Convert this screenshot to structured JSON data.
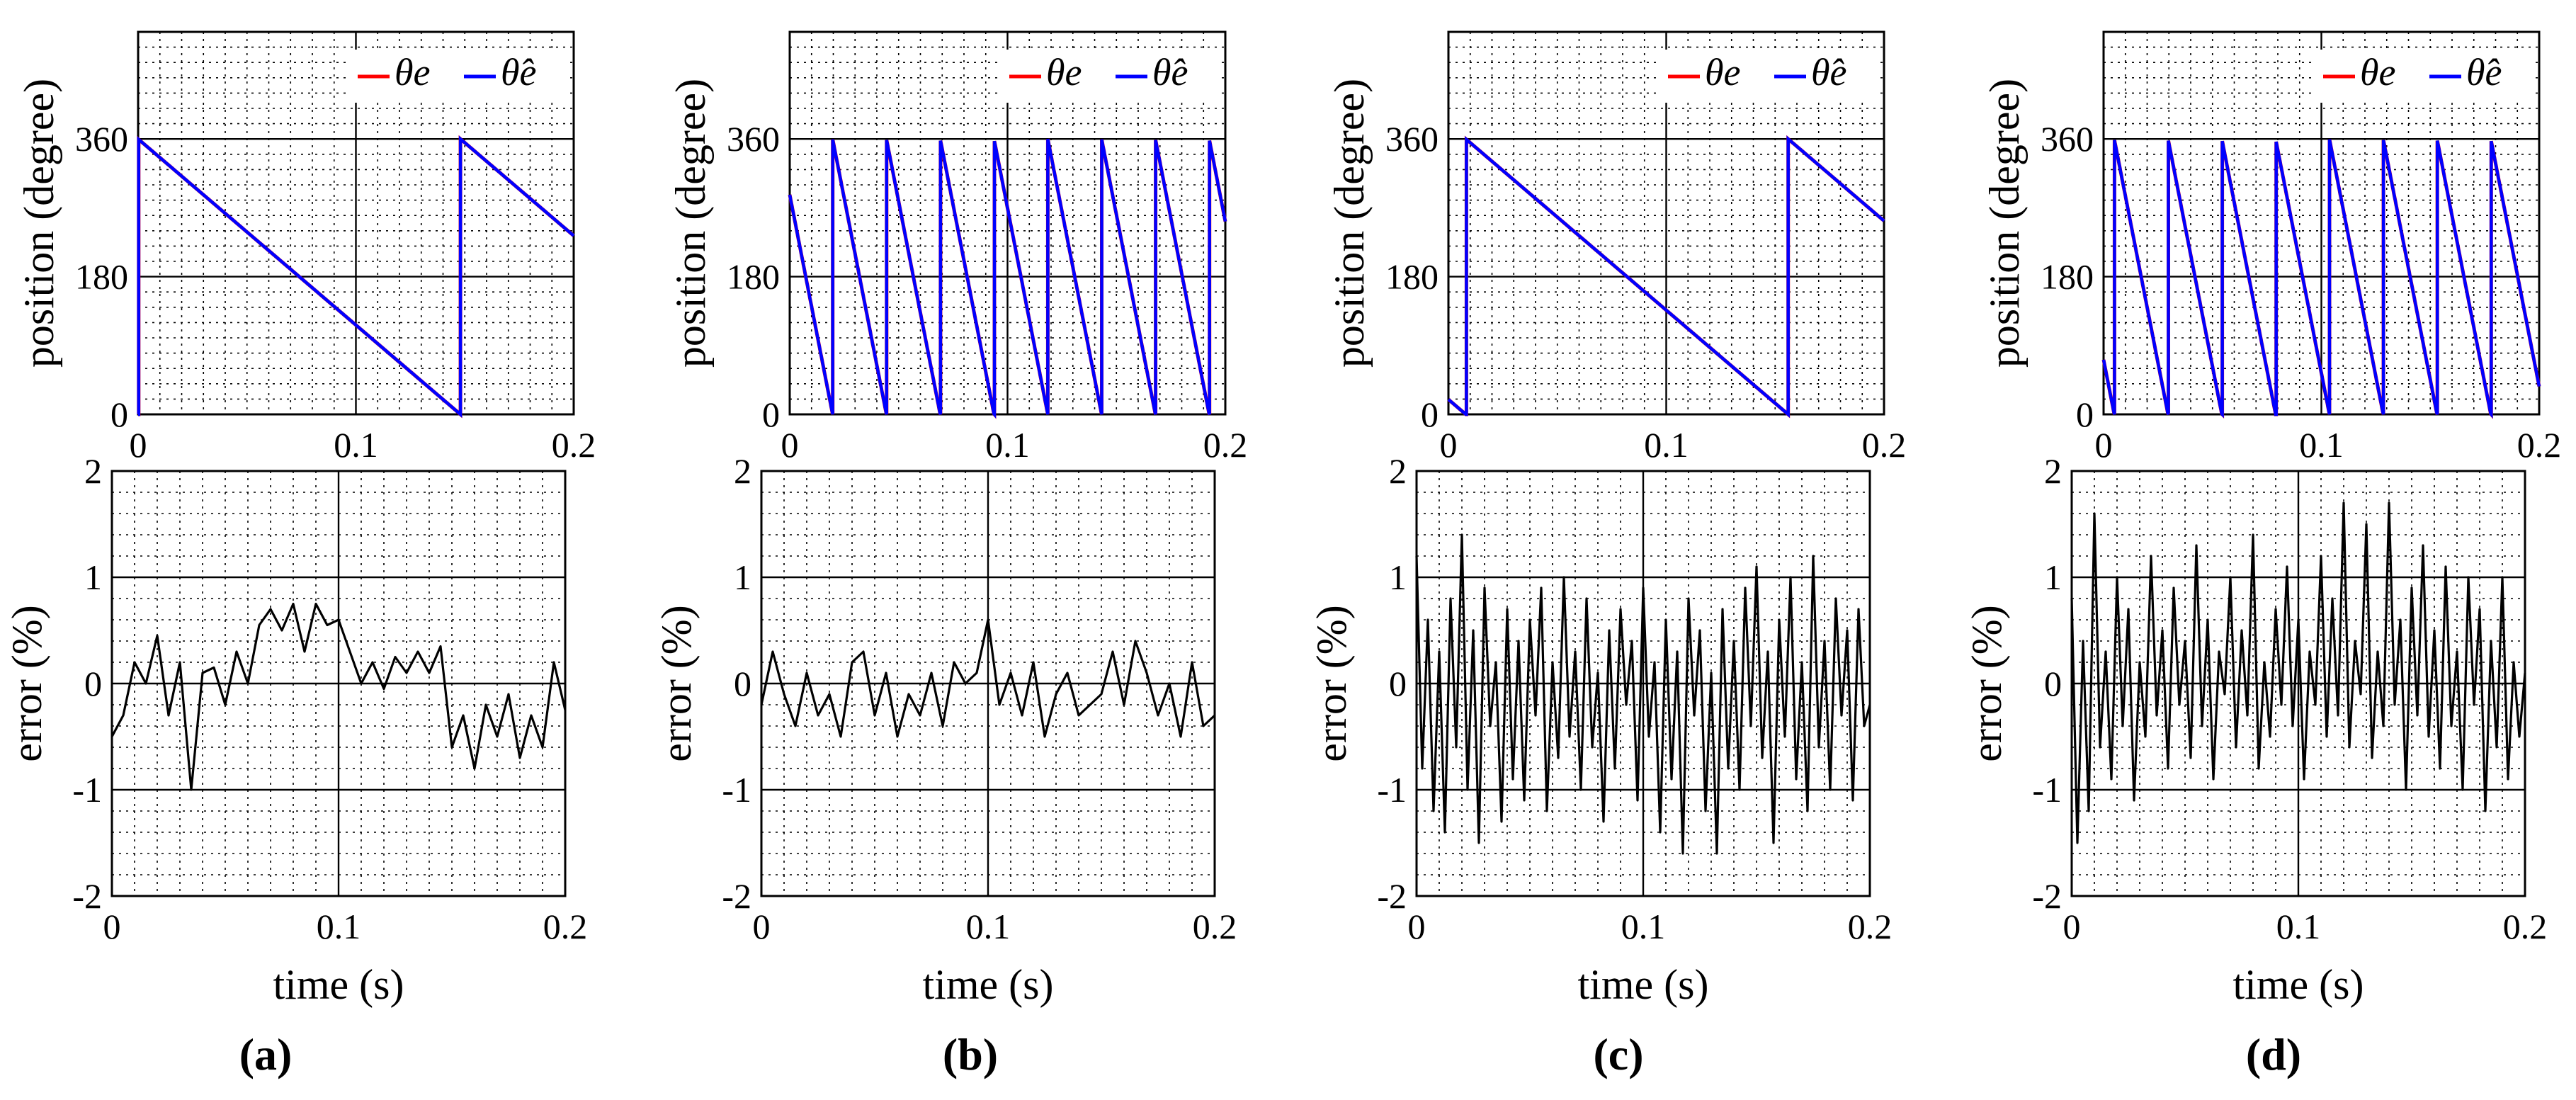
{
  "figure": {
    "captions": [
      "(a)",
      "(b)",
      "(c)",
      "(d)"
    ],
    "xlabel": "time  (s)",
    "colors": {
      "actual": "#ff0000",
      "estimated": "#0000ff",
      "error": "#000000",
      "grid_major": "#000000",
      "grid_minor": "#000000"
    }
  },
  "chart_data": [
    {
      "id": "a-position",
      "panel": "a",
      "type": "line",
      "title": "",
      "xlabel": "",
      "ylabel": "position (degree)",
      "xlim": [
        0,
        0.2
      ],
      "ylim": [
        0,
        500
      ],
      "xticks": [
        0,
        0.1,
        0.2
      ],
      "xtick_labels": [
        "0",
        "0.1",
        "0.2"
      ],
      "yticks": [
        0,
        180,
        360
      ],
      "ytick_labels": [
        "0",
        "180",
        "360"
      ],
      "grid": true,
      "legend": [
        "θe",
        "θ̂e"
      ],
      "legend_position": "top-right",
      "period_s": 0.148,
      "zero_phase_s": 0.148,
      "series": [
        {
          "name": "θe",
          "color": "#ff0000"
        },
        {
          "name": "θ̂e",
          "color": "#0000ff"
        }
      ]
    },
    {
      "id": "b-position",
      "panel": "b",
      "type": "line",
      "title": "",
      "xlabel": "",
      "ylabel": "position (degree)",
      "xlim": [
        0,
        0.2
      ],
      "ylim": [
        0,
        500
      ],
      "xticks": [
        0,
        0.1,
        0.2
      ],
      "xtick_labels": [
        "0",
        "0.1",
        "0.2"
      ],
      "yticks": [
        0,
        180,
        360
      ],
      "ytick_labels": [
        "0",
        "180",
        "360"
      ],
      "grid": true,
      "legend": [
        "θe",
        "θ̂e"
      ],
      "legend_position": "top-right",
      "period_s": 0.0247,
      "zero_phase_s": 0.0197,
      "series": [
        {
          "name": "θe",
          "color": "#ff0000"
        },
        {
          "name": "θ̂e",
          "color": "#0000ff"
        }
      ]
    },
    {
      "id": "c-position",
      "panel": "c",
      "type": "line",
      "title": "",
      "xlabel": "",
      "ylabel": "position (degree)",
      "xlim": [
        0,
        0.2
      ],
      "ylim": [
        0,
        500
      ],
      "xticks": [
        0,
        0.1,
        0.2
      ],
      "xtick_labels": [
        "0",
        "0.1",
        "0.2"
      ],
      "yticks": [
        0,
        180,
        360
      ],
      "ytick_labels": [
        "0",
        "180",
        "360"
      ],
      "grid": true,
      "legend": [
        "θe",
        "θ̂e"
      ],
      "legend_position": "top-right",
      "period_s": 0.148,
      "zero_phase_s": 0.156,
      "series": [
        {
          "name": "θe",
          "color": "#ff0000"
        },
        {
          "name": "θ̂e",
          "color": "#0000ff"
        }
      ]
    },
    {
      "id": "d-position",
      "panel": "d",
      "type": "line",
      "title": "",
      "xlabel": "",
      "ylabel": "position (degree)",
      "xlim": [
        0,
        0.2
      ],
      "ylim": [
        0,
        500
      ],
      "xticks": [
        0,
        0.1,
        0.2
      ],
      "xtick_labels": [
        "0",
        "0.1",
        "0.2"
      ],
      "yticks": [
        0,
        180,
        360
      ],
      "ytick_labels": [
        "0",
        "180",
        "360"
      ],
      "grid": true,
      "legend": [
        "θe",
        "θ̂e"
      ],
      "legend_position": "top-right",
      "period_s": 0.0247,
      "zero_phase_s": 0.0049,
      "series": [
        {
          "name": "θe",
          "color": "#ff0000"
        },
        {
          "name": "θ̂e",
          "color": "#0000ff"
        }
      ]
    },
    {
      "id": "a-error",
      "panel": "a",
      "type": "line",
      "title": "",
      "xlabel": "time  (s)",
      "ylabel": "error (%)",
      "xlim": [
        0,
        0.2
      ],
      "ylim": [
        -2,
        2
      ],
      "xticks": [
        0,
        0.1,
        0.2
      ],
      "xtick_labels": [
        "0",
        "0.1",
        "0.2"
      ],
      "yticks": [
        -2,
        -1,
        0,
        1,
        2
      ],
      "ytick_labels": [
        "-2",
        "-1",
        "0",
        "1",
        "2"
      ],
      "grid": true,
      "color": "#000000",
      "x": [
        0,
        0.005,
        0.01,
        0.015,
        0.02,
        0.025,
        0.03,
        0.035,
        0.04,
        0.045,
        0.05,
        0.055,
        0.06,
        0.065,
        0.07,
        0.075,
        0.08,
        0.085,
        0.09,
        0.095,
        0.1,
        0.105,
        0.11,
        0.115,
        0.12,
        0.125,
        0.13,
        0.135,
        0.14,
        0.145,
        0.15,
        0.155,
        0.16,
        0.165,
        0.17,
        0.175,
        0.18,
        0.185,
        0.19,
        0.195,
        0.2
      ],
      "y": [
        -0.5,
        -0.3,
        0.2,
        0.0,
        0.45,
        -0.3,
        0.2,
        -1.0,
        0.1,
        0.15,
        -0.2,
        0.3,
        0.0,
        0.55,
        0.7,
        0.5,
        0.75,
        0.3,
        0.75,
        0.55,
        0.6,
        0.3,
        0.0,
        0.2,
        -0.05,
        0.25,
        0.1,
        0.3,
        0.1,
        0.35,
        -0.6,
        -0.3,
        -0.8,
        -0.2,
        -0.5,
        -0.1,
        -0.7,
        -0.3,
        -0.6,
        0.2,
        -0.25
      ]
    },
    {
      "id": "b-error",
      "panel": "b",
      "type": "line",
      "title": "",
      "xlabel": "time  (s)",
      "ylabel": "error (%)",
      "xlim": [
        0,
        0.2
      ],
      "ylim": [
        -2,
        2
      ],
      "xticks": [
        0,
        0.1,
        0.2
      ],
      "xtick_labels": [
        "0",
        "0.1",
        "0.2"
      ],
      "yticks": [
        -2,
        -1,
        0,
        1,
        2
      ],
      "ytick_labels": [
        "-2",
        "-1",
        "0",
        "1",
        "2"
      ],
      "grid": true,
      "color": "#000000",
      "x": [
        0,
        0.005,
        0.01,
        0.015,
        0.02,
        0.025,
        0.03,
        0.035,
        0.04,
        0.045,
        0.05,
        0.055,
        0.06,
        0.065,
        0.07,
        0.075,
        0.08,
        0.085,
        0.09,
        0.095,
        0.1,
        0.105,
        0.11,
        0.115,
        0.12,
        0.125,
        0.13,
        0.135,
        0.14,
        0.145,
        0.15,
        0.155,
        0.16,
        0.165,
        0.17,
        0.175,
        0.18,
        0.185,
        0.19,
        0.195,
        0.2
      ],
      "y": [
        -0.2,
        0.3,
        -0.1,
        -0.4,
        0.1,
        -0.3,
        -0.1,
        -0.5,
        0.2,
        0.3,
        -0.3,
        0.1,
        -0.5,
        -0.1,
        -0.3,
        0.1,
        -0.4,
        0.2,
        0.0,
        0.1,
        0.6,
        -0.2,
        0.1,
        -0.3,
        0.2,
        -0.5,
        -0.1,
        0.1,
        -0.3,
        -0.2,
        -0.1,
        0.3,
        -0.2,
        0.4,
        0.1,
        -0.3,
        0.0,
        -0.5,
        0.2,
        -0.4,
        -0.3
      ]
    },
    {
      "id": "c-error",
      "panel": "c",
      "type": "line",
      "title": "",
      "xlabel": "time  (s)",
      "ylabel": "error (%)",
      "xlim": [
        0,
        0.2
      ],
      "ylim": [
        -2,
        2
      ],
      "xticks": [
        0,
        0.1,
        0.2
      ],
      "xtick_labels": [
        "0",
        "0.1",
        "0.2"
      ],
      "yticks": [
        -2,
        -1,
        0,
        1,
        2
      ],
      "ytick_labels": [
        "-2",
        "-1",
        "0",
        "1",
        "2"
      ],
      "grid": true,
      "color": "#000000",
      "x": [
        0,
        0.0025,
        0.005,
        0.0075,
        0.01,
        0.0125,
        0.015,
        0.0175,
        0.02,
        0.0225,
        0.025,
        0.0275,
        0.03,
        0.0325,
        0.035,
        0.0375,
        0.04,
        0.0425,
        0.045,
        0.0475,
        0.05,
        0.0525,
        0.055,
        0.0575,
        0.06,
        0.0625,
        0.065,
        0.0675,
        0.07,
        0.0725,
        0.075,
        0.0775,
        0.08,
        0.0825,
        0.085,
        0.0875,
        0.09,
        0.0925,
        0.095,
        0.0975,
        0.1,
        0.1025,
        0.105,
        0.1075,
        0.11,
        0.1125,
        0.115,
        0.1175,
        0.12,
        0.1225,
        0.125,
        0.1275,
        0.13,
        0.1325,
        0.135,
        0.1375,
        0.14,
        0.1425,
        0.145,
        0.1475,
        0.15,
        0.1525,
        0.155,
        0.1575,
        0.16,
        0.1625,
        0.165,
        0.1675,
        0.17,
        0.1725,
        0.175,
        0.1775,
        0.18,
        0.1825,
        0.185,
        0.1875,
        0.19,
        0.1925,
        0.195,
        0.1975,
        0.2
      ],
      "y": [
        1.2,
        -0.8,
        0.6,
        -1.2,
        0.3,
        -1.4,
        0.8,
        -0.6,
        1.4,
        -1.0,
        0.5,
        -1.5,
        0.9,
        -0.4,
        0.2,
        -1.3,
        0.7,
        -0.9,
        0.4,
        -1.1,
        0.6,
        -0.3,
        0.9,
        -1.2,
        0.2,
        -0.7,
        1.0,
        -0.5,
        0.3,
        -1.0,
        0.8,
        -0.6,
        0.1,
        -1.3,
        0.5,
        -0.8,
        0.7,
        -0.2,
        0.4,
        -1.1,
        0.9,
        -0.5,
        0.2,
        -1.4,
        0.6,
        -0.9,
        0.3,
        -1.6,
        0.8,
        -0.3,
        0.5,
        -1.2,
        0.1,
        -1.6,
        0.7,
        -0.8,
        0.4,
        -1.0,
        0.9,
        -0.4,
        1.1,
        -0.7,
        0.3,
        -1.5,
        0.6,
        -0.5,
        1.0,
        -0.9,
        0.2,
        -1.2,
        1.2,
        -0.6,
        0.4,
        -1.0,
        0.8,
        -0.3,
        0.5,
        -1.1,
        0.7,
        -0.4,
        -0.2
      ]
    },
    {
      "id": "d-error",
      "panel": "d",
      "type": "line",
      "title": "",
      "xlabel": "time  (s)",
      "ylabel": "error (%)",
      "xlim": [
        0,
        0.2
      ],
      "ylim": [
        -2,
        2
      ],
      "xticks": [
        0,
        0.1,
        0.2
      ],
      "xtick_labels": [
        "0",
        "0.1",
        "0.2"
      ],
      "yticks": [
        -2,
        -1,
        0,
        1,
        2
      ],
      "ytick_labels": [
        "-2",
        "-1",
        "0",
        "1",
        "2"
      ],
      "grid": true,
      "color": "#000000",
      "x": [
        0,
        0.0025,
        0.005,
        0.0075,
        0.01,
        0.0125,
        0.015,
        0.0175,
        0.02,
        0.0225,
        0.025,
        0.0275,
        0.03,
        0.0325,
        0.035,
        0.0375,
        0.04,
        0.0425,
        0.045,
        0.0475,
        0.05,
        0.0525,
        0.055,
        0.0575,
        0.06,
        0.0625,
        0.065,
        0.0675,
        0.07,
        0.0725,
        0.075,
        0.0775,
        0.08,
        0.0825,
        0.085,
        0.0875,
        0.09,
        0.0925,
        0.095,
        0.0975,
        0.1,
        0.1025,
        0.105,
        0.1075,
        0.11,
        0.1125,
        0.115,
        0.1175,
        0.12,
        0.1225,
        0.125,
        0.1275,
        0.13,
        0.1325,
        0.135,
        0.1375,
        0.14,
        0.1425,
        0.145,
        0.1475,
        0.15,
        0.1525,
        0.155,
        0.1575,
        0.16,
        0.1625,
        0.165,
        0.1675,
        0.17,
        0.1725,
        0.175,
        0.1775,
        0.18,
        0.1825,
        0.185,
        0.1875,
        0.19,
        0.1925,
        0.195,
        0.1975,
        0.2
      ],
      "y": [
        0.8,
        -1.5,
        0.4,
        -1.2,
        1.6,
        -0.6,
        0.3,
        -0.9,
        1.0,
        -0.4,
        0.7,
        -1.1,
        0.2,
        -0.5,
        1.2,
        -0.3,
        0.5,
        -0.8,
        0.9,
        -0.2,
        0.4,
        -0.7,
        1.3,
        -0.4,
        0.6,
        -0.9,
        0.3,
        -0.1,
        1.0,
        -0.6,
        0.5,
        -0.3,
        1.4,
        -0.8,
        0.2,
        -0.5,
        0.7,
        -0.2,
        1.1,
        -0.4,
        0.6,
        -0.9,
        0.3,
        -0.2,
        1.2,
        -0.5,
        0.8,
        -0.3,
        1.7,
        -0.6,
        0.4,
        -0.1,
        1.5,
        -0.7,
        0.3,
        -0.4,
        1.7,
        -0.2,
        0.6,
        -1.0,
        0.9,
        -0.3,
        1.3,
        -0.5,
        0.5,
        -0.8,
        1.1,
        -0.4,
        0.3,
        -1.0,
        1.0,
        -0.2,
        0.7,
        -1.2,
        0.4,
        -0.6,
        1.0,
        -0.9,
        0.2,
        -0.5,
        0.1
      ]
    }
  ]
}
